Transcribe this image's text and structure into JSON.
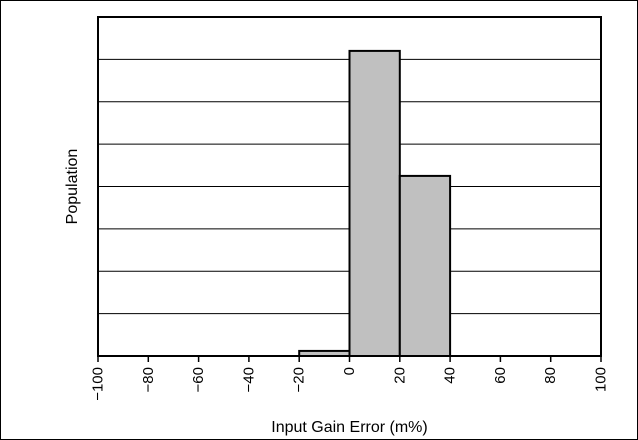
{
  "chart_data": {
    "type": "bar",
    "title": "",
    "xlabel": "Input Gain Error (m%)",
    "ylabel": "Population",
    "xlim": [
      -100,
      100
    ],
    "ylim": [
      0,
      8
    ],
    "x_ticks": [
      -100,
      -80,
      -60,
      -40,
      -20,
      0,
      20,
      40,
      60,
      80,
      100
    ],
    "x_tick_labels": [
      "−100",
      "−80",
      "−60",
      "−40",
      "−20",
      "0",
      "20",
      "40",
      "60",
      "80",
      "100"
    ],
    "y_tick_labels_shown": false,
    "grid": {
      "horizontal": true,
      "vertical": false
    },
    "bins": [
      {
        "start": -20,
        "end": 0,
        "value": 0.12
      },
      {
        "start": 0,
        "end": 20,
        "value": 7.2
      },
      {
        "start": 20,
        "end": 40,
        "value": 4.25
      }
    ],
    "colors": {
      "bar_fill": "#c0c0c0",
      "bar_stroke": "#000000",
      "grid": "#000000",
      "axis": "#000000"
    }
  }
}
